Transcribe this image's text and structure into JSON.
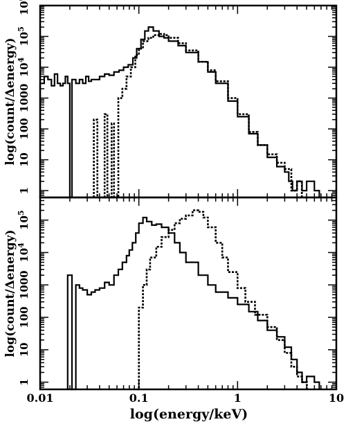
{
  "chart_data": {
    "type": "line",
    "xlabel": "log(energy/keV)",
    "x_scale": "log",
    "xlim": [
      0.01,
      10
    ],
    "x_ticks": [
      {
        "value": 0.01,
        "label": "0.01"
      },
      {
        "value": 0.1,
        "label": "0.1"
      },
      {
        "value": 1,
        "label": "1"
      },
      {
        "value": 10,
        "label": "10"
      }
    ],
    "colors": {
      "solid": "#000000",
      "dashed": "#000000"
    },
    "panels": [
      {
        "ylabel": "log(count/Δenergy)",
        "y_scale": "log",
        "ylim": [
          0.6,
          1000000
        ],
        "y_ticks": [
          {
            "value": 1,
            "label": "1",
            "sup": ""
          },
          {
            "value": 10,
            "label": "10",
            "sup": ""
          },
          {
            "value": 100,
            "label": "100",
            "sup": ""
          },
          {
            "value": 1000,
            "label": "1000",
            "sup": ""
          },
          {
            "value": 10000,
            "label": "10",
            "sup": "4"
          },
          {
            "value": 100000,
            "label": "10",
            "sup": "5"
          },
          {
            "value": 1000000,
            "label": "10",
            "sup": "6"
          }
        ],
        "series": [
          {
            "style": "solid",
            "x": [
              0.01,
              0.011,
              0.012,
              0.013,
              0.014,
              0.015,
              0.016,
              0.017,
              0.018,
              0.019,
              0.02,
              0.021,
              0.023,
              0.025,
              0.027,
              0.029,
              0.031,
              0.033,
              0.036,
              0.04,
              0.045,
              0.05,
              0.056,
              0.063,
              0.07,
              0.078,
              0.087,
              0.095,
              0.105,
              0.115,
              0.125,
              0.14,
              0.16,
              0.18,
              0.2,
              0.25,
              0.3,
              0.4,
              0.5,
              0.6,
              0.8,
              1.0,
              1.3,
              1.6,
              2.0,
              2.5,
              3.0,
              3.3,
              3.6,
              4.0,
              4.5,
              5.0,
              6.0
            ],
            "y": [
              3000,
              5000,
              4000,
              2500,
              6000,
              3000,
              2500,
              3000,
              5000,
              3000,
              0.6,
              4000,
              3000,
              4000,
              3000,
              5000,
              3500,
              4000,
              4000,
              5000,
              6000,
              5500,
              7000,
              8000,
              10000,
              12000,
              20000,
              40000,
              80000,
              150000,
              200000,
              150000,
              100000,
              90000,
              70000,
              50000,
              30000,
              15000,
              7000,
              3000,
              800,
              250,
              70,
              30,
              12,
              6,
              4,
              2,
              1,
              2,
              1,
              2,
              1
            ]
          },
          {
            "style": "dashed",
            "x": [
              0.035,
              0.038,
              0.045,
              0.048,
              0.053,
              0.056,
              0.062,
              0.068,
              0.075,
              0.083,
              0.092,
              0.1,
              0.11,
              0.125,
              0.14,
              0.16,
              0.18,
              0.2,
              0.25,
              0.3,
              0.4,
              0.5,
              0.6,
              0.8,
              1.0,
              1.3,
              1.6,
              2.0,
              2.5,
              3.0,
              3.5,
              4.0
            ],
            "y": [
              200,
              0.6,
              300,
              0.6,
              150,
              0.6,
              1000,
              2000,
              5000,
              10000,
              25000,
              40000,
              70000,
              90000,
              110000,
              120000,
              110000,
              90000,
              60000,
              35000,
              15000,
              8000,
              3500,
              1000,
              300,
              80,
              30,
              15,
              8,
              5,
              1,
              2
            ]
          }
        ]
      },
      {
        "ylabel": "log(count/Δenergy)",
        "y_scale": "log",
        "ylim": [
          0.6,
          500000
        ],
        "y_ticks": [
          {
            "value": 1,
            "label": "1",
            "sup": ""
          },
          {
            "value": 10,
            "label": "10",
            "sup": ""
          },
          {
            "value": 100,
            "label": "100",
            "sup": ""
          },
          {
            "value": 1000,
            "label": "1000",
            "sup": ""
          },
          {
            "value": 10000,
            "label": "10",
            "sup": "4"
          },
          {
            "value": 100000,
            "label": "10",
            "sup": "5"
          }
        ],
        "series": [
          {
            "style": "solid",
            "x": [
              0.019,
              0.021,
              0.023,
              0.025,
              0.027,
              0.03,
              0.033,
              0.036,
              0.04,
              0.045,
              0.05,
              0.056,
              0.062,
              0.068,
              0.075,
              0.08,
              0.086,
              0.093,
              0.1,
              0.11,
              0.12,
              0.135,
              0.15,
              0.17,
              0.2,
              0.23,
              0.26,
              0.3,
              0.4,
              0.5,
              0.6,
              0.8,
              1.0,
              1.3,
              1.6,
              2.0,
              2.5,
              3.0,
              3.5,
              4.0,
              4.5,
              5.0,
              6.0
            ],
            "y": [
              2000,
              0.6,
              1000,
              800,
              700,
              500,
              600,
              700,
              800,
              1200,
              1000,
              2000,
              3000,
              5000,
              8000,
              12000,
              20000,
              40000,
              80000,
              120000,
              90000,
              70000,
              75000,
              60000,
              40000,
              20000,
              10000,
              5000,
              2000,
              1000,
              600,
              400,
              250,
              150,
              80,
              40,
              25,
              12,
              5,
              2,
              1,
              1.5,
              1
            ]
          },
          {
            "style": "dashed",
            "x": [
              0.095,
              0.1,
              0.11,
              0.12,
              0.13,
              0.15,
              0.17,
              0.2,
              0.23,
              0.26,
              0.3,
              0.35,
              0.4,
              0.45,
              0.5,
              0.6,
              0.7,
              0.8,
              1.0,
              1.2,
              1.5,
              2.0,
              2.5,
              3.0,
              3.5,
              4.0,
              4.5
            ],
            "y": [
              0.6,
              200,
              1000,
              3000,
              7000,
              15000,
              30000,
              50000,
              80000,
              110000,
              140000,
              200000,
              180000,
              120000,
              60000,
              20000,
              7000,
              2500,
              800,
              300,
              120,
              50,
              20,
              8,
              3,
              1.5,
              1
            ]
          }
        ]
      }
    ]
  }
}
